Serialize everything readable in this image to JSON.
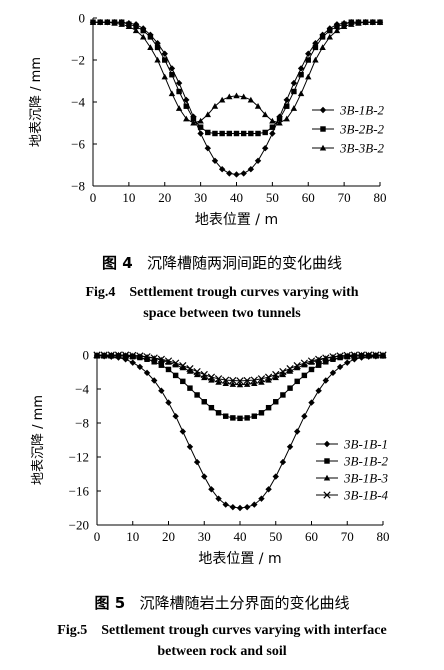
{
  "figures": [
    {
      "caption_cn_prefix": "图 4",
      "caption_cn": "沉降槽随两洞间距的变化曲线",
      "caption_en_line1": "Fig.4    Settlement trough curves varying with",
      "caption_en_line2": "space between two tunnels"
    },
    {
      "caption_cn_prefix": "图 5",
      "caption_cn": "沉降槽随岩土分界面的变化曲线",
      "caption_en_line1": "Fig.5    Settlement trough curves varying with interface",
      "caption_en_line2": "between rock and soil"
    }
  ],
  "chart_data": [
    {
      "type": "line",
      "xlabel": "地表位置 / m",
      "ylabel": "地表沉降 / mm",
      "xlim": [
        0,
        80
      ],
      "ylim": [
        -8,
        0
      ],
      "xticks": [
        0,
        10,
        20,
        30,
        40,
        50,
        60,
        70,
        80
      ],
      "yticks": [
        0,
        -2,
        -4,
        -6,
        -8
      ],
      "legend_position": "right",
      "grid": false,
      "series": [
        {
          "name": "3B-1B-2",
          "marker": "diamond",
          "x": [
            0,
            2,
            4,
            6,
            8,
            10,
            12,
            14,
            16,
            18,
            20,
            22,
            24,
            26,
            28,
            30,
            32,
            34,
            36,
            38,
            40,
            42,
            44,
            46,
            48,
            50,
            52,
            54,
            56,
            58,
            60,
            62,
            64,
            66,
            68,
            70,
            72,
            74,
            76,
            78,
            80
          ],
          "values": [
            -0.2,
            -0.2,
            -0.2,
            -0.2,
            -0.2,
            -0.25,
            -0.3,
            -0.5,
            -0.8,
            -1.2,
            -1.7,
            -2.4,
            -3.1,
            -3.9,
            -4.7,
            -5.5,
            -6.2,
            -6.8,
            -7.2,
            -7.4,
            -7.45,
            -7.4,
            -7.2,
            -6.8,
            -6.2,
            -5.5,
            -4.7,
            -3.9,
            -3.1,
            -2.4,
            -1.7,
            -1.2,
            -0.8,
            -0.5,
            -0.3,
            -0.25,
            -0.2,
            -0.2,
            -0.2,
            -0.2,
            -0.2
          ]
        },
        {
          "name": "3B-2B-2",
          "marker": "square",
          "x": [
            0,
            2,
            4,
            6,
            8,
            10,
            12,
            14,
            16,
            18,
            20,
            22,
            24,
            26,
            28,
            30,
            32,
            34,
            36,
            38,
            40,
            42,
            44,
            46,
            48,
            50,
            52,
            54,
            56,
            58,
            60,
            62,
            64,
            66,
            68,
            70,
            72,
            74,
            76,
            78,
            80
          ],
          "values": [
            -0.2,
            -0.2,
            -0.2,
            -0.2,
            -0.2,
            -0.3,
            -0.4,
            -0.6,
            -0.9,
            -1.4,
            -2.0,
            -2.7,
            -3.5,
            -4.2,
            -4.8,
            -5.2,
            -5.45,
            -5.5,
            -5.5,
            -5.5,
            -5.5,
            -5.5,
            -5.5,
            -5.5,
            -5.45,
            -5.2,
            -4.8,
            -4.2,
            -3.5,
            -2.7,
            -2.0,
            -1.4,
            -0.9,
            -0.6,
            -0.4,
            -0.3,
            -0.2,
            -0.2,
            -0.2,
            -0.2,
            -0.2
          ]
        },
        {
          "name": "3B-3B-2",
          "marker": "triangle",
          "x": [
            0,
            2,
            4,
            6,
            8,
            10,
            12,
            14,
            16,
            18,
            20,
            22,
            24,
            26,
            28,
            30,
            32,
            34,
            36,
            38,
            40,
            42,
            44,
            46,
            48,
            50,
            52,
            54,
            56,
            58,
            60,
            62,
            64,
            66,
            68,
            70,
            72,
            74,
            76,
            78,
            80
          ],
          "values": [
            -0.2,
            -0.2,
            -0.2,
            -0.25,
            -0.3,
            -0.4,
            -0.6,
            -0.9,
            -1.4,
            -2.0,
            -2.8,
            -3.6,
            -4.3,
            -4.8,
            -5.0,
            -4.9,
            -4.6,
            -4.2,
            -3.9,
            -3.75,
            -3.7,
            -3.75,
            -3.9,
            -4.2,
            -4.6,
            -4.9,
            -5.0,
            -4.8,
            -4.3,
            -3.6,
            -2.8,
            -2.0,
            -1.4,
            -0.9,
            -0.6,
            -0.4,
            -0.3,
            -0.25,
            -0.2,
            -0.2,
            -0.2
          ]
        }
      ]
    },
    {
      "type": "line",
      "xlabel": "地表位置 / m",
      "ylabel": "地表沉降 / mm",
      "xlim": [
        0,
        80
      ],
      "ylim": [
        -20,
        0
      ],
      "xticks": [
        0,
        10,
        20,
        30,
        40,
        50,
        60,
        70,
        80
      ],
      "yticks": [
        0,
        -4,
        -8,
        -12,
        -16,
        -20
      ],
      "legend_position": "right",
      "grid": false,
      "series": [
        {
          "name": "3B-1B-1",
          "marker": "diamond",
          "x": [
            0,
            2,
            4,
            6,
            8,
            10,
            12,
            14,
            16,
            18,
            20,
            22,
            24,
            26,
            28,
            30,
            32,
            34,
            36,
            38,
            40,
            42,
            44,
            46,
            48,
            50,
            52,
            54,
            56,
            58,
            60,
            62,
            64,
            66,
            68,
            70,
            72,
            74,
            76,
            78,
            80
          ],
          "values": [
            -0.1,
            -0.15,
            -0.2,
            -0.3,
            -0.5,
            -0.9,
            -1.4,
            -2.1,
            -3.0,
            -4.2,
            -5.6,
            -7.2,
            -9.0,
            -10.8,
            -12.6,
            -14.3,
            -15.8,
            -16.9,
            -17.6,
            -17.9,
            -18.0,
            -17.9,
            -17.6,
            -16.9,
            -15.8,
            -14.3,
            -12.6,
            -10.8,
            -9.0,
            -7.2,
            -5.6,
            -4.2,
            -3.0,
            -2.1,
            -1.4,
            -0.9,
            -0.5,
            -0.3,
            -0.2,
            -0.15,
            -0.1
          ]
        },
        {
          "name": "3B-1B-2",
          "marker": "square",
          "x": [
            0,
            2,
            4,
            6,
            8,
            10,
            12,
            14,
            16,
            18,
            20,
            22,
            24,
            26,
            28,
            30,
            32,
            34,
            36,
            38,
            40,
            42,
            44,
            46,
            48,
            50,
            52,
            54,
            56,
            58,
            60,
            62,
            64,
            66,
            68,
            70,
            72,
            74,
            76,
            78,
            80
          ],
          "values": [
            -0.1,
            -0.1,
            -0.1,
            -0.1,
            -0.15,
            -0.2,
            -0.3,
            -0.5,
            -0.8,
            -1.2,
            -1.7,
            -2.4,
            -3.1,
            -3.9,
            -4.7,
            -5.5,
            -6.2,
            -6.8,
            -7.2,
            -7.4,
            -7.45,
            -7.4,
            -7.2,
            -6.8,
            -6.2,
            -5.5,
            -4.7,
            -3.9,
            -3.1,
            -2.4,
            -1.7,
            -1.2,
            -0.8,
            -0.5,
            -0.3,
            -0.2,
            -0.15,
            -0.1,
            -0.1,
            -0.1,
            -0.1
          ]
        },
        {
          "name": "3B-1B-3",
          "marker": "triangle",
          "x": [
            0,
            2,
            4,
            6,
            8,
            10,
            12,
            14,
            16,
            18,
            20,
            22,
            24,
            26,
            28,
            30,
            32,
            34,
            36,
            38,
            40,
            42,
            44,
            46,
            48,
            50,
            52,
            54,
            56,
            58,
            60,
            62,
            64,
            66,
            68,
            70,
            72,
            74,
            76,
            78,
            80
          ],
          "values": [
            0,
            0,
            0,
            0,
            -0.05,
            -0.1,
            -0.15,
            -0.25,
            -0.4,
            -0.6,
            -0.85,
            -1.15,
            -1.5,
            -1.9,
            -2.3,
            -2.65,
            -2.95,
            -3.2,
            -3.35,
            -3.45,
            -3.5,
            -3.45,
            -3.35,
            -3.2,
            -2.95,
            -2.65,
            -2.3,
            -1.9,
            -1.5,
            -1.15,
            -0.85,
            -0.6,
            -0.4,
            -0.25,
            -0.15,
            -0.1,
            -0.05,
            0,
            0,
            0,
            0
          ]
        },
        {
          "name": "3B-1B-4",
          "marker": "x",
          "x": [
            0,
            2,
            4,
            6,
            8,
            10,
            12,
            14,
            16,
            18,
            20,
            22,
            24,
            26,
            28,
            30,
            32,
            34,
            36,
            38,
            40,
            42,
            44,
            46,
            48,
            50,
            52,
            54,
            56,
            58,
            60,
            62,
            64,
            66,
            68,
            70,
            72,
            74,
            76,
            78,
            80
          ],
          "values": [
            0,
            0,
            0,
            0,
            0,
            -0.05,
            -0.1,
            -0.2,
            -0.35,
            -0.5,
            -0.7,
            -0.95,
            -1.25,
            -1.6,
            -1.95,
            -2.3,
            -2.6,
            -2.8,
            -2.95,
            -3.0,
            -3.05,
            -3.0,
            -2.95,
            -2.8,
            -2.6,
            -2.3,
            -1.95,
            -1.6,
            -1.25,
            -0.95,
            -0.7,
            -0.5,
            -0.35,
            -0.2,
            -0.1,
            -0.05,
            0,
            0,
            0,
            0,
            0
          ]
        }
      ]
    }
  ]
}
